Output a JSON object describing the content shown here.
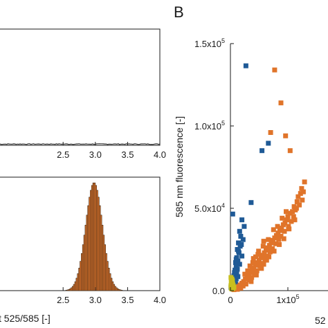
{
  "panel_b_label": "B",
  "chart_data": [
    {
      "id": "top-left-histogram",
      "type": "bar",
      "note_visible": "panel cropped on the left; only right portion visible",
      "xlim": [
        1.5,
        4.0
      ],
      "x_ticks": [
        "2.5",
        "3.0",
        "3.5",
        "4.0"
      ],
      "x_tick_values": [
        2.5,
        3.0,
        3.5,
        4.0
      ],
      "ylim": [
        0,
        1
      ],
      "baseline_noise": {
        "from": 1.5,
        "to": 4.0,
        "level": 0.006
      },
      "grid": false
    },
    {
      "id": "bottom-left-histogram",
      "type": "bar",
      "xlim": [
        1.5,
        4.0
      ],
      "x_ticks": [
        "2.5",
        "3.0",
        "3.5",
        "4.0"
      ],
      "x_tick_values": [
        2.5,
        3.0,
        3.5,
        4.0
      ],
      "xlabel_visible": "t 525/585 [-]",
      "ylim": [
        0,
        1.05
      ],
      "bin_width": 0.02,
      "distribution": {
        "center": 2.98,
        "sd": 0.13,
        "peak": 1.0
      },
      "color": "#e0742a",
      "edge_color": "#3a2a1a",
      "grid": false
    },
    {
      "id": "panel-b-scatter",
      "type": "scatter",
      "ylabel": "585 nm fluorescence [-]",
      "xlabel_visible": "52",
      "xlim": [
        0,
        130000
      ],
      "ylim": [
        0,
        150000
      ],
      "y_ticks": [
        {
          "value": 0,
          "mant": "0.0",
          "exp": ""
        },
        {
          "value": 50000,
          "mant": "5.0x10",
          "exp": "4"
        },
        {
          "value": 100000,
          "mant": "1.0x10",
          "exp": "5"
        },
        {
          "value": 150000,
          "mant": "1.5x10",
          "exp": "5"
        }
      ],
      "x_ticks": [
        {
          "value": 0,
          "mant": "0",
          "exp": ""
        },
        {
          "value": 100000,
          "mant": "1x10",
          "exp": "5"
        }
      ],
      "grid": false,
      "series": [
        {
          "color": "#1f5a96",
          "points": [
            [
              27000,
              136500
            ],
            [
              66000,
              89500
            ],
            [
              55000,
              85000
            ],
            [
              36000,
              53500
            ],
            [
              4000,
              46500
            ],
            [
              20000,
              43000
            ],
            [
              24000,
              39000
            ],
            [
              16000,
              36000
            ],
            [
              18000,
              33000
            ],
            [
              22000,
              31000
            ],
            [
              14000,
              29000
            ],
            [
              17000,
              27000
            ],
            [
              12000,
              25000
            ],
            [
              15000,
              23000
            ],
            [
              20000,
              21000
            ],
            [
              11000,
              20000
            ],
            [
              13000,
              18000
            ],
            [
              9000,
              17000
            ],
            [
              16000,
              16000
            ],
            [
              10000,
              14500
            ],
            [
              12000,
              13000
            ],
            [
              8000,
              12500
            ],
            [
              7000,
              11000
            ],
            [
              11000,
              10500
            ],
            [
              9000,
              9500
            ],
            [
              6000,
              9000
            ],
            [
              13000,
              8500
            ],
            [
              5000,
              8000
            ],
            [
              8000,
              7500
            ],
            [
              10000,
              7000
            ],
            [
              4000,
              6500
            ],
            [
              6000,
              6000
            ],
            [
              7000,
              5000
            ],
            [
              3000,
              5500
            ],
            [
              5000,
              4500
            ],
            [
              9000,
              4000
            ],
            [
              2000,
              4000
            ],
            [
              4000,
              3500
            ],
            [
              6000,
              3000
            ],
            [
              3000,
              2500
            ],
            [
              1000,
              2000
            ],
            [
              5000,
              2000
            ],
            [
              2000,
              1500
            ],
            [
              7000,
              1500
            ],
            [
              4000,
              1000
            ],
            [
              14000,
              24000
            ],
            [
              19000,
              28000
            ],
            [
              10000,
              19000
            ]
          ]
        },
        {
          "color": "#e0742a",
          "points": [
            [
              77000,
              134000
            ],
            [
              88000,
              114000
            ],
            [
              96000,
              94000
            ],
            [
              104000,
              85000
            ],
            [
              70000,
              96000
            ],
            [
              129000,
              66000
            ],
            [
              124000,
              62000
            ],
            [
              122000,
              59000
            ],
            [
              118000,
              57000
            ],
            [
              125000,
              55000
            ],
            [
              116000,
              54000
            ],
            [
              120000,
              52000
            ],
            [
              111000,
              51000
            ],
            [
              113000,
              49000
            ],
            [
              108000,
              48000
            ],
            [
              104000,
              47000
            ],
            [
              110000,
              45000
            ],
            [
              100000,
              45000
            ],
            [
              98000,
              43000
            ],
            [
              106000,
              42000
            ],
            [
              95000,
              41000
            ],
            [
              92000,
              40000
            ],
            [
              101000,
              39000
            ],
            [
              89000,
              38000
            ],
            [
              86000,
              36500
            ],
            [
              94000,
              36000
            ],
            [
              83000,
              35000
            ],
            [
              80000,
              33500
            ],
            [
              88000,
              33000
            ],
            [
              77000,
              32000
            ],
            [
              84000,
              31000
            ],
            [
              74000,
              30500
            ],
            [
              71000,
              29000
            ],
            [
              79000,
              28500
            ],
            [
              68000,
              27500
            ],
            [
              65000,
              26000
            ],
            [
              73000,
              25500
            ],
            [
              62000,
              24500
            ],
            [
              69000,
              23500
            ],
            [
              59000,
              23000
            ],
            [
              56000,
              21500
            ],
            [
              64000,
              21000
            ],
            [
              53000,
              20000
            ],
            [
              60000,
              19000
            ],
            [
              50000,
              18500
            ],
            [
              47000,
              17000
            ],
            [
              55000,
              16500
            ],
            [
              44000,
              15500
            ],
            [
              51000,
              15000
            ],
            [
              41000,
              14000
            ],
            [
              38000,
              12500
            ],
            [
              46000,
              12000
            ],
            [
              35000,
              11000
            ],
            [
              42000,
              10500
            ],
            [
              32000,
              9500
            ],
            [
              29000,
              8500
            ],
            [
              37000,
              8000
            ],
            [
              26000,
              7000
            ],
            [
              33000,
              6500
            ],
            [
              23000,
              5500
            ],
            [
              20000,
              4500
            ],
            [
              27000,
              4000
            ],
            [
              17000,
              3500
            ],
            [
              22000,
              2800
            ],
            [
              14000,
              2500
            ],
            [
              11000,
              1800
            ],
            [
              18000,
              1500
            ],
            [
              8000,
              1200
            ],
            [
              12000,
              800
            ],
            [
              6000,
              600
            ],
            [
              115000,
              50000
            ],
            [
              97000,
              48000
            ],
            [
              90000,
              44000
            ],
            [
              82000,
              39000
            ],
            [
              75000,
              37000
            ],
            [
              66000,
              31000
            ],
            [
              57000,
              27000
            ],
            [
              48000,
              22000
            ],
            [
              39000,
              17000
            ],
            [
              30000,
              12000
            ],
            [
              63000,
              18500
            ],
            [
              54000,
              13500
            ],
            [
              45000,
              9500
            ],
            [
              36000,
              5500
            ],
            [
              85000,
              28000
            ],
            [
              76000,
              24000
            ],
            [
              67000,
              20500
            ],
            [
              58000,
              16000
            ],
            [
              93000,
              31500
            ],
            [
              102000,
              37500
            ],
            [
              112000,
              43000
            ],
            [
              127000,
              60000
            ],
            [
              40000,
              19500
            ],
            [
              49000,
              24000
            ],
            [
              34000,
              15000
            ],
            [
              25000,
              10000
            ],
            [
              58000,
              30000
            ],
            [
              44000,
              20500
            ]
          ]
        },
        {
          "color": "#c8c01e",
          "points": [
            [
              1000,
              3000
            ],
            [
              2000,
              5000
            ],
            [
              3000,
              2000
            ],
            [
              4000,
              4000
            ],
            [
              2500,
              7000
            ],
            [
              1500,
              1500
            ],
            [
              3500,
              6000
            ],
            [
              5000,
              3000
            ],
            [
              1000,
              8000
            ],
            [
              2000,
              2500
            ],
            [
              4500,
              1500
            ],
            [
              3000,
              4500
            ],
            [
              6000,
              2000
            ],
            [
              1500,
              5500
            ],
            [
              2500,
              1000
            ]
          ]
        }
      ]
    }
  ]
}
